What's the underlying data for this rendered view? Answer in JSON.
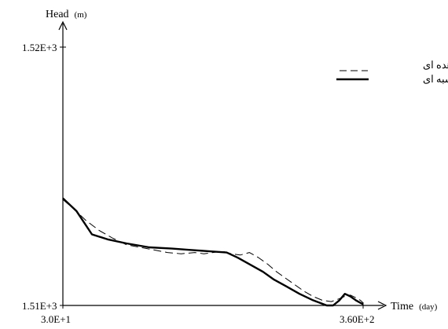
{
  "chart_data": {
    "type": "line",
    "xlabel": "Time",
    "xunit": "(day)",
    "ylabel": "Head",
    "yunit": "(m)",
    "xlim": [
      30,
      360
    ],
    "ylim": [
      1510,
      1520
    ],
    "x_tick_labels": [
      "3.0E+1",
      "3.60E+2"
    ],
    "y_tick_labels": [
      "1.51E+3",
      "1.52E+3"
    ],
    "legend_position": "top-right",
    "series": [
      {
        "name": "بار مشاهده ای",
        "style": "dashed",
        "color": "#000000",
        "x": [
          30,
          40,
          55,
          70,
          85,
          100,
          115,
          130,
          145,
          160,
          175,
          185,
          195,
          205,
          215,
          225,
          235,
          245,
          255,
          265,
          275,
          285,
          295,
          305,
          315,
          325,
          333,
          340,
          346,
          352,
          357,
          360
        ],
        "y": [
          1514.1,
          1513.8,
          1513.3,
          1512.9,
          1512.6,
          1512.35,
          1512.25,
          1512.15,
          1512.05,
          1512.0,
          1512.05,
          1512.0,
          1512.05,
          1512.1,
          1512.0,
          1511.95,
          1512.05,
          1511.85,
          1511.6,
          1511.3,
          1511.05,
          1510.8,
          1510.55,
          1510.35,
          1510.2,
          1510.15,
          1510.25,
          1510.35,
          1510.4,
          1510.3,
          1510.2,
          1510.1
        ]
      },
      {
        "name": "بار محاسبه ای",
        "style": "solid",
        "color": "#000000",
        "x": [
          30,
          45,
          62,
          80,
          100,
          125,
          150,
          170,
          190,
          210,
          222,
          235,
          250,
          262,
          275,
          290,
          305,
          320,
          327,
          334,
          340,
          346,
          352,
          357,
          360
        ],
        "y": [
          1514.15,
          1513.65,
          1512.75,
          1512.55,
          1512.4,
          1512.25,
          1512.2,
          1512.15,
          1512.1,
          1512.05,
          1511.85,
          1511.6,
          1511.3,
          1511.0,
          1510.75,
          1510.45,
          1510.2,
          1510.0,
          1510.0,
          1510.2,
          1510.45,
          1510.35,
          1510.2,
          1510.1,
          1510.05
        ]
      }
    ]
  }
}
